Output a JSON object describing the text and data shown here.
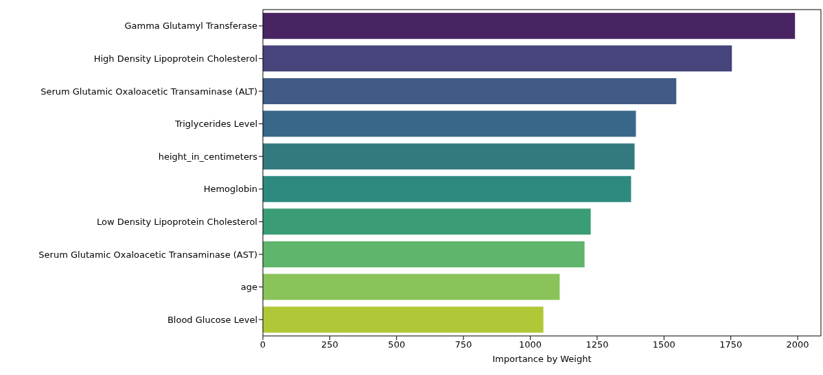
{
  "chart_data": {
    "type": "bar",
    "orientation": "horizontal",
    "xlabel": "Importance by Weight",
    "categories": [
      "Gamma Glutamyl Transferase",
      "High Density Lipoprotein Cholesterol",
      "Serum Glutamic Oxaloacetic Transaminase (ALT)",
      "Triglycerides Level",
      "height_in_centimeters",
      "Hemoglobin",
      "Low Density Lipoprotein Cholesterol",
      "Serum Glutamic Oxaloacetic Transaminase (AST)",
      "age",
      "Blood Glucose Level"
    ],
    "values": [
      1990,
      1754,
      1546,
      1395,
      1390,
      1377,
      1226,
      1203,
      1110,
      1049
    ],
    "colors": [
      "#482462",
      "#46447b",
      "#415b86",
      "#38678a",
      "#337a7e",
      "#2e8a7f",
      "#3a9d76",
      "#5fb56b",
      "#8ac35a",
      "#b0c837"
    ],
    "xlim": [
      0,
      2087
    ],
    "xticks": [
      0,
      250,
      500,
      750,
      1000,
      1250,
      1500,
      1750,
      2000
    ],
    "grid": false
  }
}
